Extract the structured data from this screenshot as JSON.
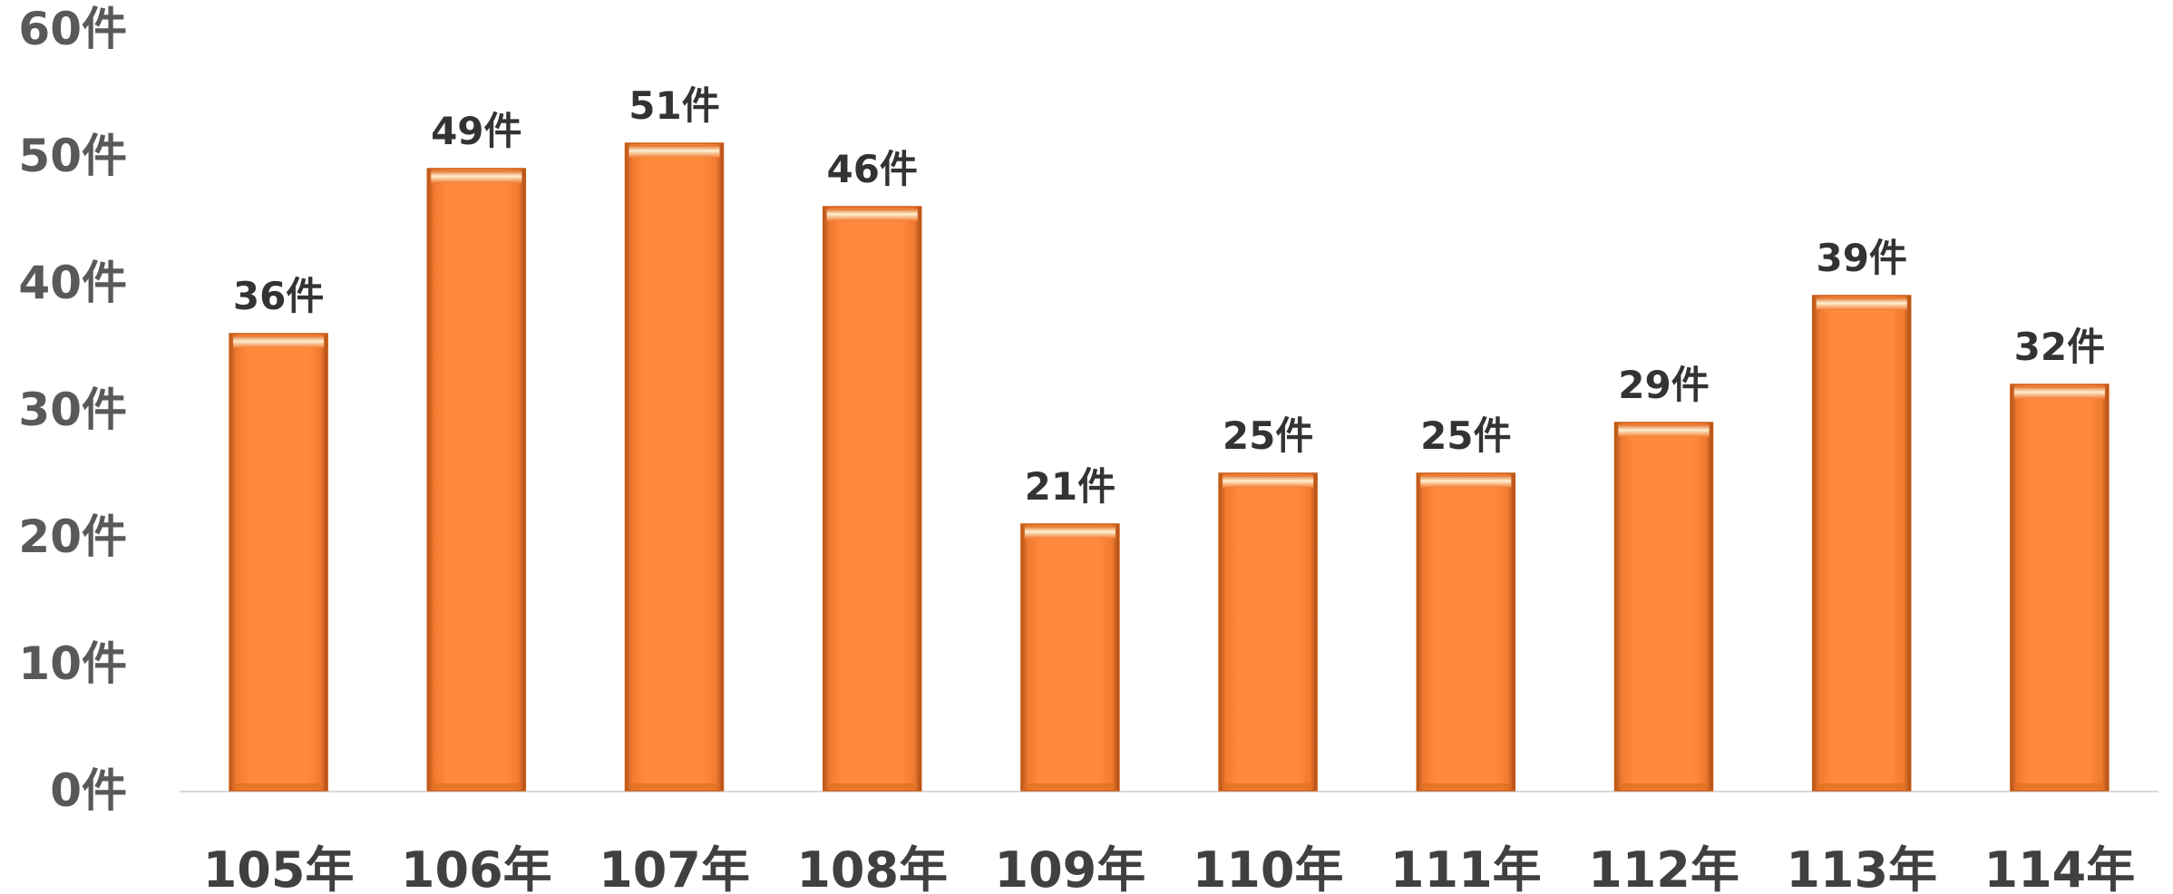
{
  "chart_data": {
    "type": "bar",
    "categories": [
      "105年",
      "106年",
      "107年",
      "108年",
      "109年",
      "110年",
      "111年",
      "112年",
      "113年",
      "114年"
    ],
    "values": [
      36,
      49,
      51,
      46,
      21,
      25,
      25,
      29,
      39,
      32
    ],
    "data_labels": [
      "36件",
      "49件",
      "51件",
      "46件",
      "21件",
      "25件",
      "25件",
      "29件",
      "39件",
      "32件"
    ],
    "yticks": [
      0,
      10,
      20,
      30,
      40,
      50,
      60
    ],
    "ytick_labels": [
      "0件",
      "10件",
      "20件",
      "30件",
      "40件",
      "50件",
      "60件"
    ],
    "ylim": [
      0,
      60
    ],
    "grid": false,
    "legend": "none",
    "bar_color": "#FF8533",
    "bar_edge_color": "#C85A14",
    "bar_highlight_color": "#FFE1B0"
  }
}
